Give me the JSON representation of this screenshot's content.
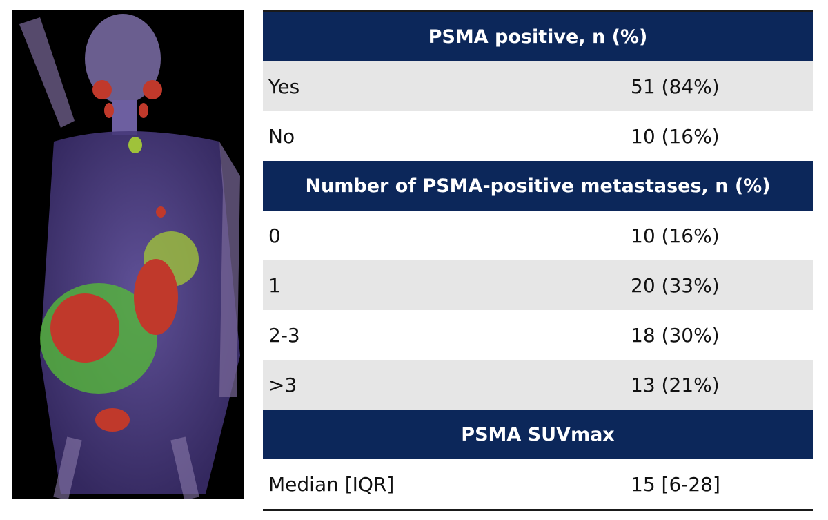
{
  "table": {
    "sections": [
      {
        "header": "PSMA positive, n (%)",
        "rows": [
          [
            "Yes",
            "51 (84%)"
          ],
          [
            "No",
            "10 (16%)"
          ]
        ]
      },
      {
        "header": "Number of PSMA-positive metastases, n (%)",
        "rows": [
          [
            "0",
            "10 (16%)"
          ],
          [
            "1",
            "20 (33%)"
          ],
          [
            "2-3",
            "18 (30%)"
          ],
          [
            ">3",
            "13 (21%)"
          ]
        ]
      },
      {
        "header": "PSMA SUVmax",
        "rows": [
          [
            "Median [IQR]",
            "15 [6-28]"
          ]
        ]
      }
    ]
  }
}
